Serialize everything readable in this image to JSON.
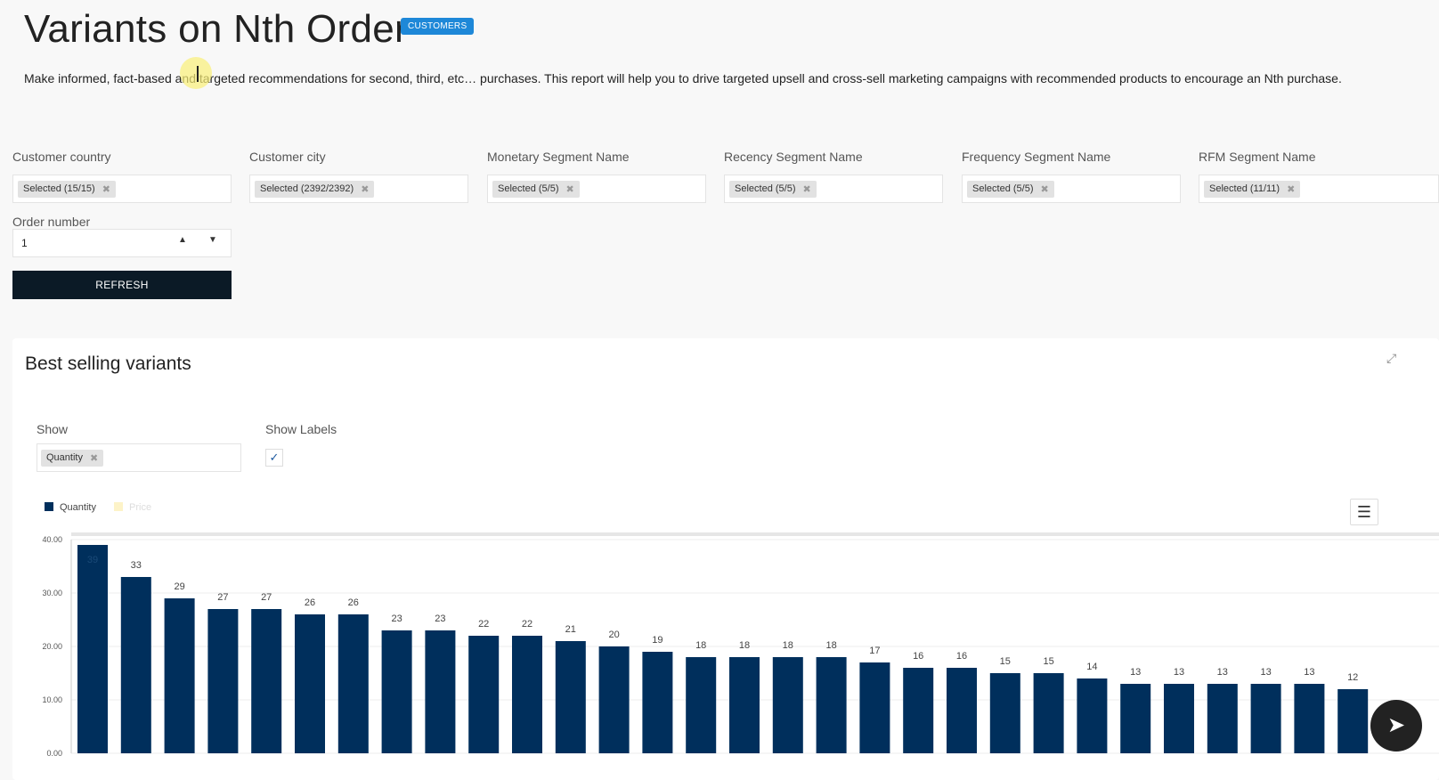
{
  "header": {
    "title": "Variants on Nth Order",
    "badge": "CUSTOMERS",
    "description": "Make informed, fact-based and targeted recommendations for second, third, etc… purchases. This report will help you to drive targeted upsell and cross-sell marketing campaigns with recommended products to encourage an Nth purchase."
  },
  "filters": [
    {
      "label": "Customer country",
      "chip": "Selected (15/15)"
    },
    {
      "label": "Customer city",
      "chip": "Selected (2392/2392)"
    },
    {
      "label": "Monetary Segment Name",
      "chip": "Selected (5/5)"
    },
    {
      "label": "Recency Segment Name",
      "chip": "Selected (5/5)"
    },
    {
      "label": "Frequency Segment Name",
      "chip": "Selected (5/5)"
    },
    {
      "label": "RFM Segment Name",
      "chip": "Selected (11/11)"
    }
  ],
  "order": {
    "label": "Order number",
    "value": "1"
  },
  "refresh_label": "REFRESH",
  "card": {
    "title": "Best selling variants",
    "show_label": "Show",
    "show_chip": "Quantity",
    "show_labels_label": "Show Labels",
    "show_labels_checked": true
  },
  "chart_data": {
    "type": "bar",
    "series": [
      {
        "name": "Quantity",
        "color": "#002f5c",
        "values": [
          39,
          33,
          29,
          27,
          27,
          26,
          26,
          23,
          23,
          22,
          22,
          21,
          20,
          19,
          18,
          18,
          18,
          18,
          17,
          16,
          16,
          15,
          15,
          14,
          13,
          13,
          13,
          13,
          13,
          12
        ]
      },
      {
        "name": "Price",
        "color": "#fdf3c8",
        "values": []
      }
    ],
    "yticks": [
      "0.00",
      "10.00",
      "20.00",
      "30.00",
      "40.00"
    ],
    "ylim": [
      0,
      40
    ],
    "grid": true,
    "legend": "top-left",
    "show_labels": true
  }
}
